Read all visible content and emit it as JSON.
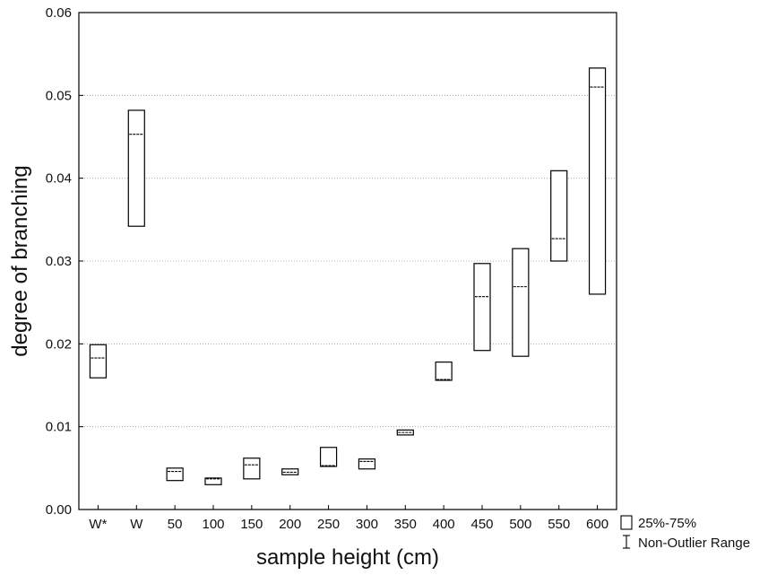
{
  "chart_data": {
    "type": "box",
    "title": "",
    "xlabel": "sample height (cm)",
    "ylabel": "degree of branching",
    "ylim": [
      0,
      0.06
    ],
    "yticks": [
      "0.00",
      "0.01",
      "0.02",
      "0.03",
      "0.04",
      "0.05",
      "0.06"
    ],
    "grid": "horizontal dotted",
    "categories": [
      "W*",
      "W",
      "50",
      "100",
      "150",
      "200",
      "250",
      "300",
      "350",
      "400",
      "450",
      "500",
      "550",
      "600"
    ],
    "boxes": [
      {
        "category": "W*",
        "q1": 0.0159,
        "median": 0.0183,
        "q3": 0.0199
      },
      {
        "category": "W",
        "q1": 0.0342,
        "median": 0.0453,
        "q3": 0.0482
      },
      {
        "category": "50",
        "q1": 0.0035,
        "median": 0.0046,
        "q3": 0.005
      },
      {
        "category": "100",
        "q1": 0.003,
        "median": 0.0037,
        "q3": 0.0038
      },
      {
        "category": "150",
        "q1": 0.0037,
        "median": 0.0054,
        "q3": 0.0062
      },
      {
        "category": "200",
        "q1": 0.0042,
        "median": 0.0045,
        "q3": 0.0049
      },
      {
        "category": "250",
        "q1": 0.0052,
        "median": 0.0053,
        "q3": 0.0075
      },
      {
        "category": "300",
        "q1": 0.0049,
        "median": 0.0058,
        "q3": 0.0061
      },
      {
        "category": "350",
        "q1": 0.009,
        "median": 0.0093,
        "q3": 0.0096
      },
      {
        "category": "400",
        "q1": 0.0156,
        "median": 0.0157,
        "q3": 0.0178
      },
      {
        "category": "450",
        "q1": 0.0192,
        "median": 0.0257,
        "q3": 0.0297
      },
      {
        "category": "500",
        "q1": 0.0185,
        "median": 0.0269,
        "q3": 0.0315
      },
      {
        "category": "550",
        "q1": 0.03,
        "median": 0.0327,
        "q3": 0.0409
      },
      {
        "category": "600",
        "q1": 0.026,
        "median": 0.051,
        "q3": 0.0533
      }
    ],
    "legend": {
      "position": "bottom-right",
      "entries": [
        "25%-75%",
        "Non-Outlier Range"
      ]
    }
  }
}
